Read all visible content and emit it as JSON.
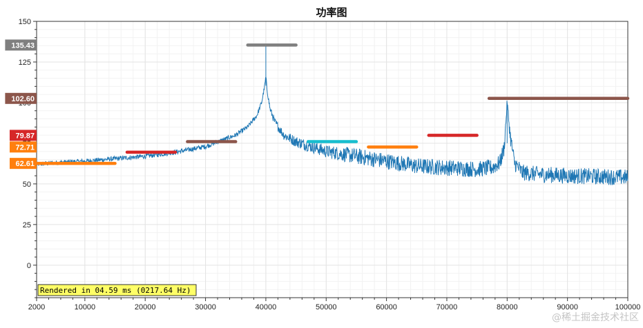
{
  "chart_data": {
    "type": "line",
    "title": "功率图",
    "xlim": [
      2000,
      100000
    ],
    "ylim": [
      -20,
      150
    ],
    "x_ticks": [
      2000,
      10000,
      20000,
      30000,
      40000,
      50000,
      60000,
      70000,
      80000,
      90000,
      100000
    ],
    "y_ticks": [
      0,
      25,
      50,
      75,
      100,
      125,
      150
    ],
    "grid": true,
    "series": [
      {
        "color": "#1f77b4",
        "x": [
          2000,
          5000,
          10000,
          15000,
          20000,
          25000,
          30000,
          35000,
          37000,
          38500,
          39300,
          39800,
          40000,
          40200,
          40700,
          41500,
          43000,
          45000,
          50000,
          55000,
          60000,
          65000,
          70000,
          75000,
          77500,
          78800,
          79500,
          80000,
          80500,
          81200,
          82500,
          85000,
          90000,
          95000,
          100000
        ],
        "y": [
          62,
          63,
          64,
          65.5,
          67,
          69.5,
          73,
          80,
          85,
          92,
          100,
          110,
          116,
          108,
          96,
          88,
          80,
          76,
          70,
          67,
          64,
          61,
          60,
          59,
          60,
          63,
          72,
          100,
          80,
          63,
          57,
          56,
          55,
          54.5,
          54
        ],
        "noise": [
          1.5,
          1.5,
          1.5,
          1.5,
          1.5,
          1.5,
          1.5,
          1.5,
          1.5,
          1.5,
          1.5,
          1.5,
          1.5,
          1.5,
          2,
          2.5,
          3,
          3.5,
          4,
          5,
          5,
          5,
          5,
          5,
          5,
          5,
          5,
          3,
          5,
          5,
          5,
          5,
          5,
          5,
          5
        ]
      }
    ],
    "segments": [
      {
        "x_start": 2000,
        "x_end": 15000,
        "y": 62.61,
        "color": "#ff7f0e"
      },
      {
        "x_start": 17000,
        "x_end": 25000,
        "y": 69.5,
        "color": "#d62728"
      },
      {
        "x_start": 27000,
        "x_end": 35000,
        "y": 76,
        "color": "#8c564b"
      },
      {
        "x_start": 37000,
        "x_end": 45000,
        "y": 135.43,
        "color": "#7f7f7f"
      },
      {
        "x_start": 47000,
        "x_end": 55000,
        "y": 76,
        "color": "#17becf"
      },
      {
        "x_start": 57000,
        "x_end": 65000,
        "y": 72.71,
        "color": "#ff7f0e"
      },
      {
        "x_start": 67000,
        "x_end": 75000,
        "y": 79.87,
        "color": "#d62728"
      },
      {
        "x_start": 77000,
        "x_end": 100000,
        "y": 102.6,
        "color": "#8c564b"
      }
    ],
    "value_badges": [
      {
        "label": "135.43",
        "y": 135.43,
        "color": "#7f7f7f"
      },
      {
        "label": "102.60",
        "y": 102.6,
        "color": "#8c564b"
      },
      {
        "label": "79.87",
        "y": 79.87,
        "color": "#d62728"
      },
      {
        "label": "72.71",
        "y": 72.71,
        "color": "#ff7f0e"
      },
      {
        "label": "62.61",
        "y": 62.61,
        "color": "#ff7f0e"
      }
    ],
    "render_info": "Rendered in 04.59 ms (0217.64 Hz)"
  },
  "watermark": "@稀土掘金技术社区"
}
